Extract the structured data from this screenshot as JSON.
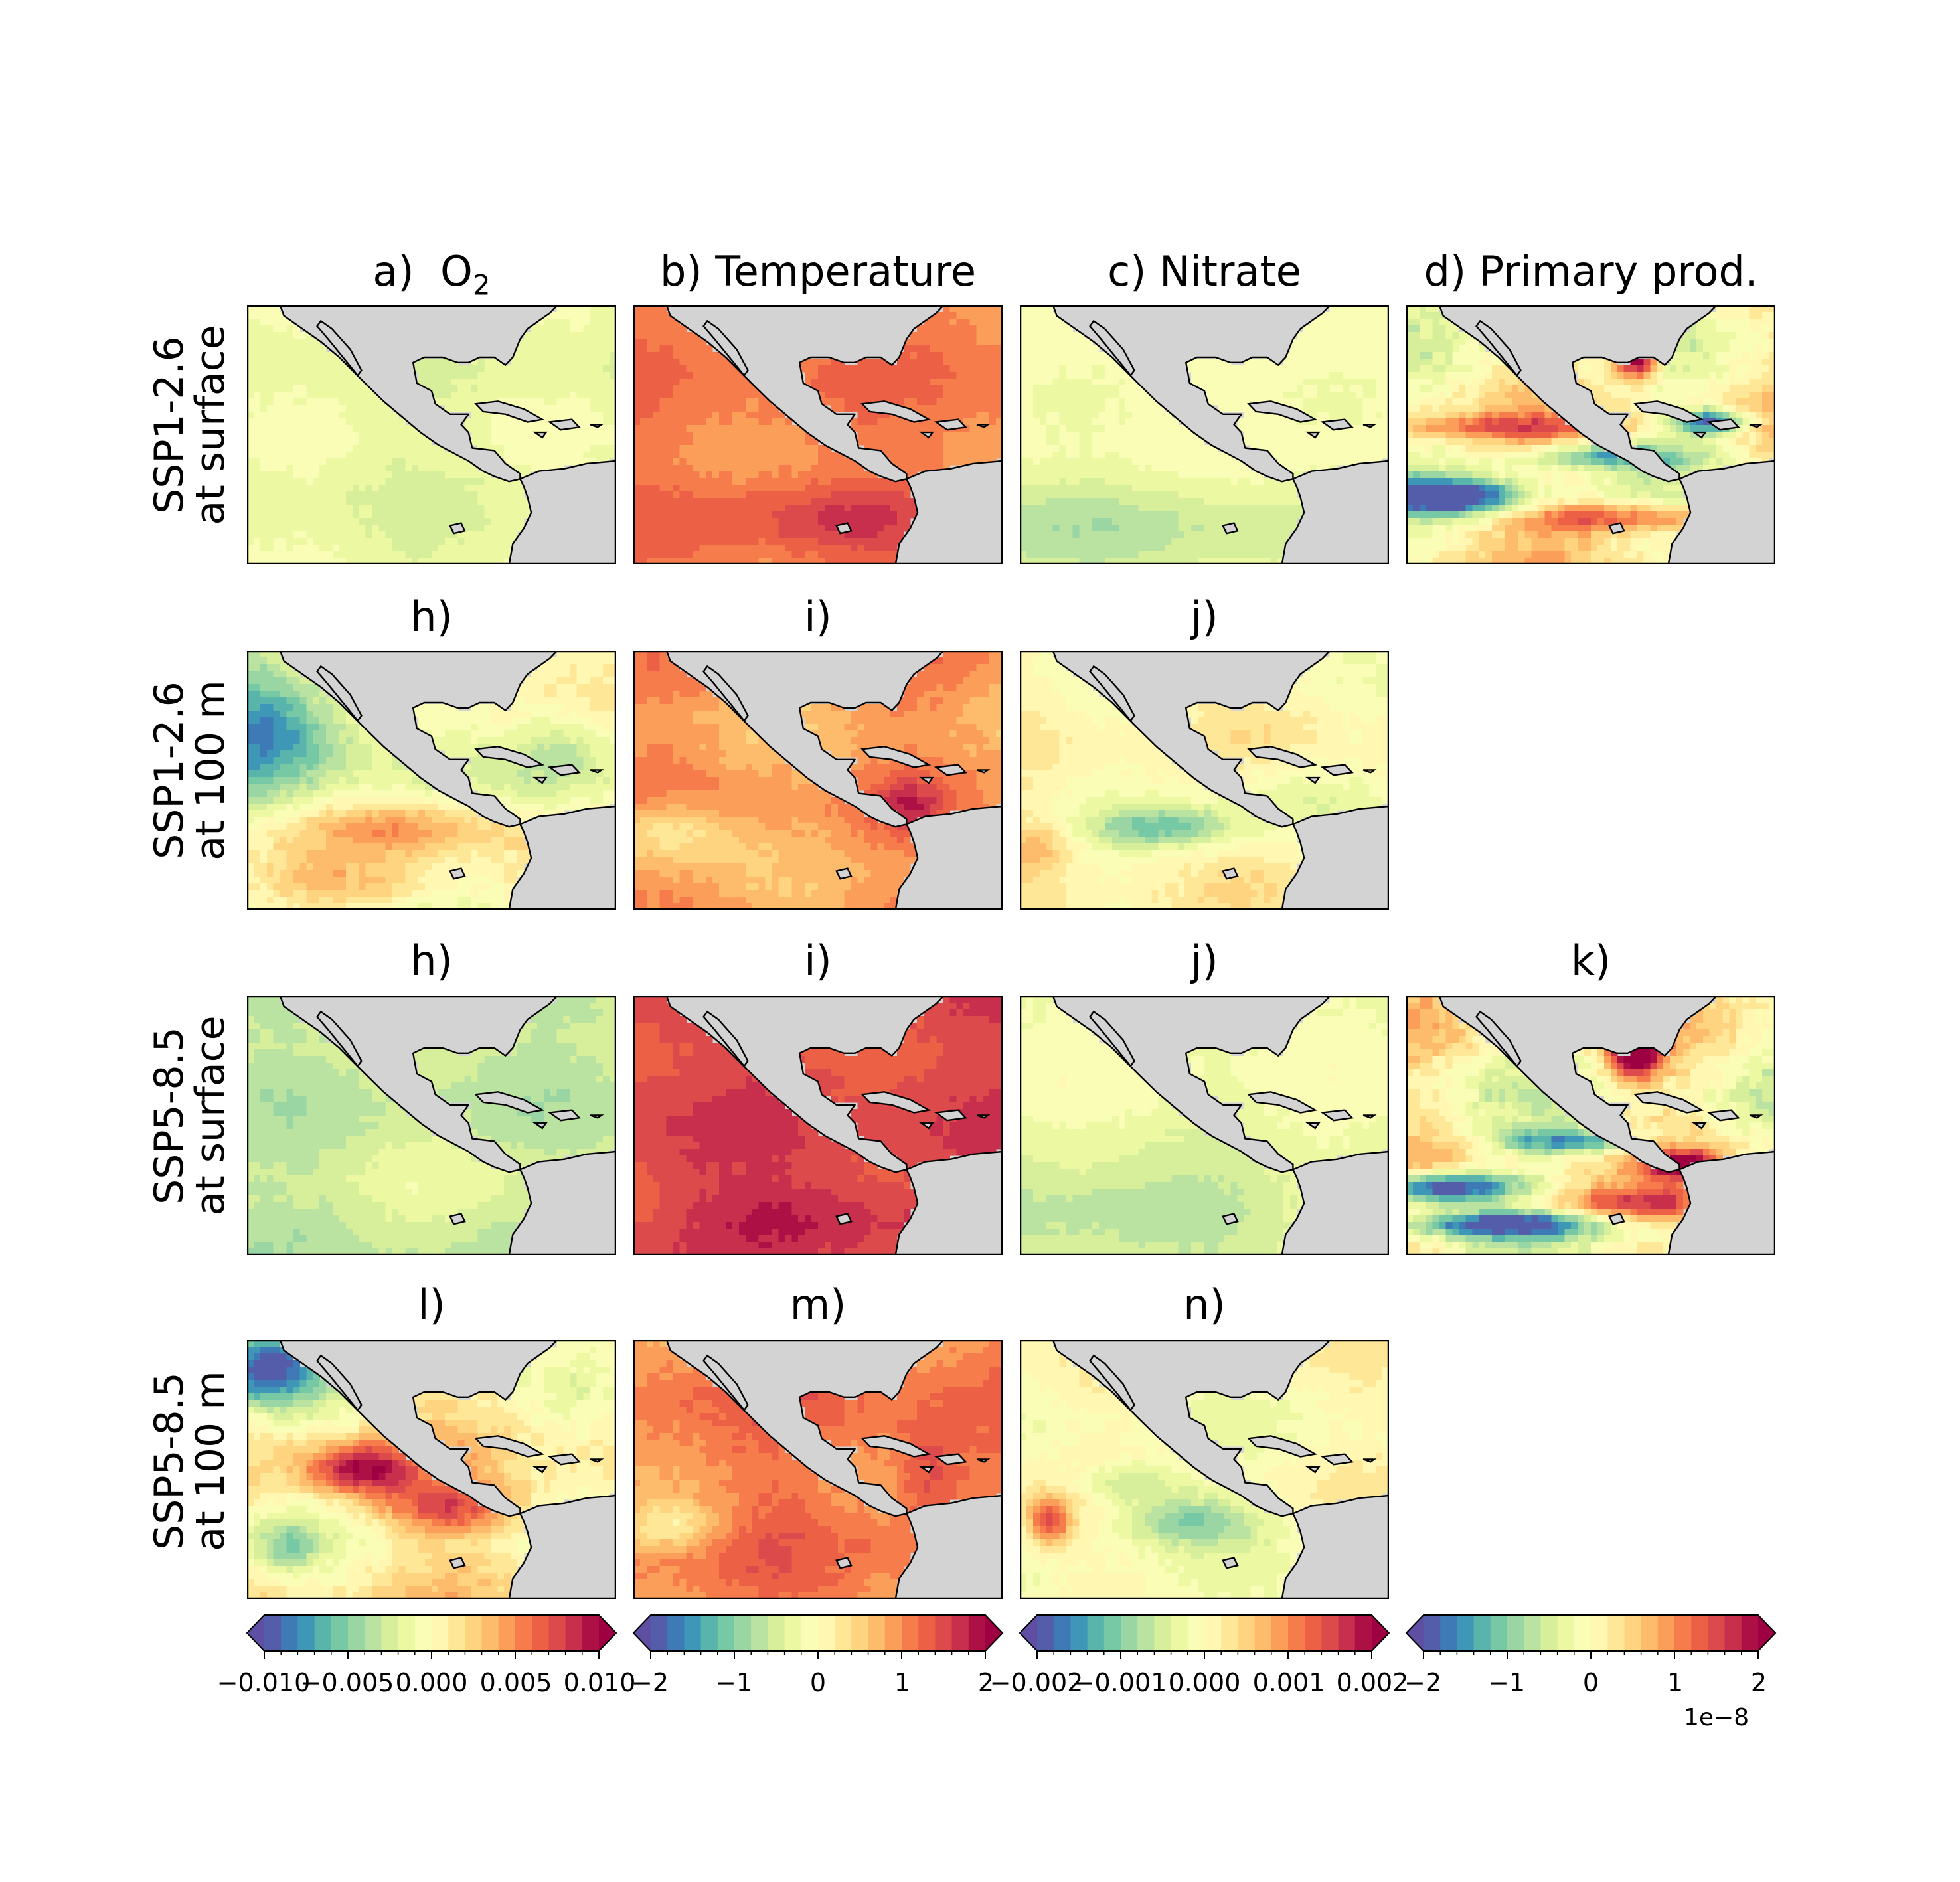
{
  "figure": {
    "columns": [
      {
        "id": "o2",
        "title_prefix": "a)",
        "title_main": "O",
        "title_sub": "2"
      },
      {
        "id": "temp",
        "title": "b)  Temperature"
      },
      {
        "id": "nitrate",
        "title": "c)  Nitrate"
      },
      {
        "id": "pp",
        "title": "d)  Primary prod."
      }
    ],
    "rows": [
      {
        "label_line1": "SSP1-2.6",
        "label_line2": "at surface"
      },
      {
        "label_line1": "SSP1-2.6",
        "label_line2": "at 100 m"
      },
      {
        "label_line1": "SSP5-8.5",
        "label_line2": "at surface"
      },
      {
        "label_line1": "SSP5-8.5",
        "label_line2": "at 100 m"
      }
    ],
    "panel_titles": {
      "r2c1": "h)",
      "r2c2": "i)",
      "r2c3": "j)",
      "r3c1": "h)",
      "r3c2": "i)",
      "r3c3": "j)",
      "r3c4": "k)",
      "r4c1": "l)",
      "r4c2": "m)",
      "r4c3": "n)"
    },
    "colorbars": [
      {
        "ticks": [
          "−0.010",
          "−0.005",
          "0.000",
          "0.005",
          "0.010"
        ],
        "range": [
          -0.01,
          0.01
        ]
      },
      {
        "ticks": [
          "−2",
          "−1",
          "0",
          "1",
          "2"
        ],
        "range": [
          -2,
          2
        ]
      },
      {
        "ticks": [
          "−0.002",
          "−0.001",
          "0.000",
          "0.001",
          "0.002"
        ],
        "range": [
          -0.002,
          0.002
        ]
      },
      {
        "ticks": [
          "−2",
          "−1",
          "0",
          "1",
          "2"
        ],
        "range": [
          -2,
          2
        ],
        "exponent": "1e−8"
      }
    ],
    "colormap": "Spectral_r",
    "land_color": "#d3d3d3",
    "panels": {
      "r1c1": {
        "mean": -0.15,
        "var": 0.1,
        "features": []
      },
      "r1c2": {
        "mean": 0.55,
        "var": 0.1,
        "features": [
          [
            0.55,
            0.82,
            0.4,
            0.12,
            0.2
          ]
        ]
      },
      "r1c3": {
        "mean": -0.05,
        "var": 0.06,
        "features": [
          [
            0.2,
            0.85,
            0.7,
            0.2,
            -0.3
          ]
        ]
      },
      "r1c4": {
        "mean": 0.05,
        "var": 0.3,
        "features": [
          [
            0.12,
            0.74,
            0.2,
            0.07,
            -1.2
          ],
          [
            0.6,
            0.82,
            0.3,
            0.06,
            0.7
          ],
          [
            0.55,
            0.58,
            0.25,
            0.05,
            -0.7
          ],
          [
            0.62,
            0.2,
            0.06,
            0.08,
            1.3
          ],
          [
            0.82,
            0.45,
            0.1,
            0.05,
            -1.0
          ],
          [
            0.25,
            0.47,
            0.3,
            0.05,
            0.5
          ]
        ]
      },
      "r2c1": {
        "mean": 0.0,
        "var": 0.2,
        "features": [
          [
            0.05,
            0.3,
            0.25,
            0.25,
            -0.9
          ],
          [
            0.45,
            0.68,
            0.25,
            0.1,
            0.5
          ],
          [
            0.3,
            0.9,
            0.3,
            0.1,
            0.2
          ],
          [
            0.85,
            0.4,
            0.15,
            0.2,
            -0.4
          ]
        ]
      },
      "r2c2": {
        "mean": 0.45,
        "var": 0.15,
        "features": [
          [
            0.1,
            0.7,
            0.15,
            0.12,
            -0.4
          ],
          [
            0.75,
            0.6,
            0.1,
            0.1,
            0.3
          ]
        ]
      },
      "r2c3": {
        "mean": 0.05,
        "var": 0.15,
        "features": [
          [
            0.4,
            0.68,
            0.2,
            0.08,
            -0.5
          ],
          [
            0.05,
            0.75,
            0.1,
            0.1,
            0.3
          ],
          [
            0.7,
            0.55,
            0.2,
            0.15,
            -0.2
          ]
        ]
      },
      "r3c1": {
        "mean": -0.3,
        "var": 0.1,
        "features": [
          [
            0.6,
            0.7,
            0.3,
            0.2,
            0.1
          ]
        ]
      },
      "r3c2": {
        "mean": 0.75,
        "var": 0.1,
        "features": [
          [
            0.5,
            0.85,
            0.35,
            0.12,
            0.2
          ]
        ]
      },
      "r3c3": {
        "mean": -0.1,
        "var": 0.08,
        "features": [
          [
            0.2,
            0.85,
            0.7,
            0.2,
            -0.3
          ]
        ]
      },
      "r3c4": {
        "mean": 0.05,
        "var": 0.35,
        "features": [
          [
            0.1,
            0.74,
            0.2,
            0.06,
            -1.3
          ],
          [
            0.25,
            0.88,
            0.25,
            0.05,
            -1.0
          ],
          [
            0.6,
            0.8,
            0.3,
            0.06,
            0.6
          ],
          [
            0.45,
            0.56,
            0.2,
            0.05,
            -0.8
          ],
          [
            0.62,
            0.22,
            0.07,
            0.1,
            1.2
          ],
          [
            0.75,
            0.65,
            0.1,
            0.06,
            0.8
          ]
        ]
      },
      "r4c1": {
        "mean": 0.1,
        "var": 0.25,
        "features": [
          [
            0.05,
            0.1,
            0.15,
            0.15,
            -1.0
          ],
          [
            0.3,
            0.5,
            0.15,
            0.1,
            0.9
          ],
          [
            0.55,
            0.65,
            0.2,
            0.1,
            0.6
          ],
          [
            0.1,
            0.8,
            0.1,
            0.1,
            -0.4
          ]
        ]
      },
      "r4c2": {
        "mean": 0.55,
        "var": 0.15,
        "features": [
          [
            0.1,
            0.72,
            0.15,
            0.1,
            -0.4
          ],
          [
            0.8,
            0.5,
            0.1,
            0.2,
            0.3
          ]
        ]
      },
      "r4c3": {
        "mean": 0.0,
        "var": 0.15,
        "features": [
          [
            0.45,
            0.7,
            0.2,
            0.1,
            -0.5
          ],
          [
            0.08,
            0.7,
            0.06,
            0.1,
            0.7
          ],
          [
            0.3,
            0.55,
            0.15,
            0.08,
            -0.4
          ]
        ]
      }
    }
  }
}
